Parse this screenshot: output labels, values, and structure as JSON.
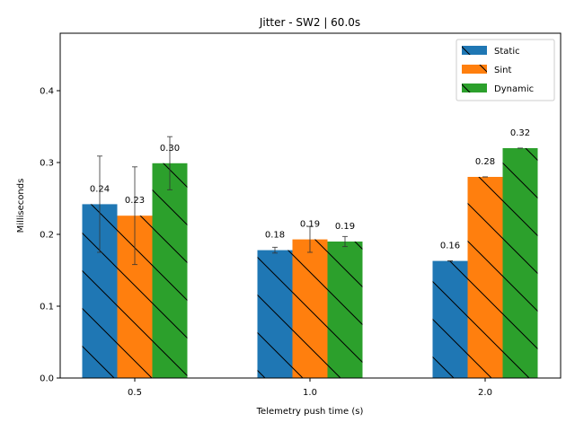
{
  "chart_data": {
    "type": "bar",
    "title": "Jitter - SW2 | 60.0s",
    "xlabel": "Telemetry push time (s)",
    "ylabel": "Milliseconds",
    "categories": [
      "0.5",
      "1.0",
      "2.0"
    ],
    "ylim": [
      0,
      0.48
    ],
    "yticks": [
      0.0,
      0.1,
      0.2,
      0.3,
      0.4
    ],
    "ytick_labels": [
      "0.0",
      "0.1",
      "0.2",
      "0.3",
      "0.4"
    ],
    "grid": false,
    "legend_position": "top-right",
    "series": [
      {
        "name": "Static",
        "color": "#1f77b4",
        "values": [
          0.242,
          0.178,
          0.163
        ],
        "errors": [
          0.067,
          0.004,
          0.0
        ],
        "labels": [
          "0.24",
          "0.18",
          "0.16"
        ]
      },
      {
        "name": "Sint",
        "color": "#ff7f0e",
        "values": [
          0.226,
          0.193,
          0.28
        ],
        "errors": [
          0.068,
          0.018,
          0.0
        ],
        "labels": [
          "0.23",
          "0.19",
          "0.28"
        ]
      },
      {
        "name": "Dynamic",
        "color": "#2ca02c",
        "values": [
          0.299,
          0.19,
          0.32
        ],
        "errors": [
          0.037,
          0.007,
          0.0
        ],
        "labels": [
          "0.30",
          "0.19",
          "0.32"
        ]
      }
    ]
  }
}
